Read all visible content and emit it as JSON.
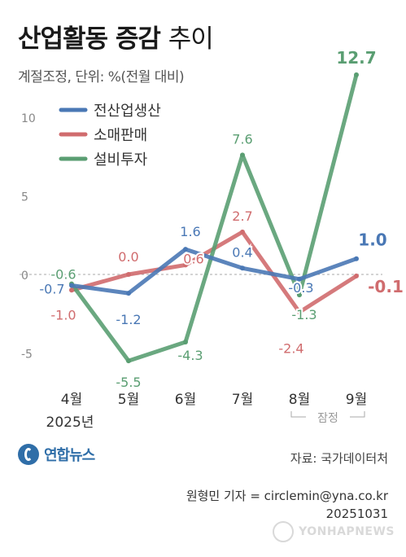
{
  "header": {
    "title_bold": "산업활동 증감",
    "title_light": "추이",
    "subtitle": "계절조정, 단위: %(전월 대비)"
  },
  "chart_data": {
    "type": "line",
    "categories": [
      "4월",
      "5월",
      "6월",
      "7월",
      "8월",
      "9월"
    ],
    "x_sublabel": "2025년",
    "provisional_label": "잠정",
    "y_ticks": [
      -5,
      0,
      5,
      10
    ],
    "ylim": [
      -7,
      14
    ],
    "legend_position": "top-left",
    "series": [
      {
        "name": "전산업생산",
        "color": "#4a78b5",
        "values": [
          -0.7,
          -1.2,
          1.6,
          0.4,
          -0.3,
          1.0
        ],
        "labels": [
          "-0.7",
          "-1.2",
          "1.6",
          "0.4",
          "-0.3",
          "1.0"
        ]
      },
      {
        "name": "소매판매",
        "color": "#d06c6e",
        "values": [
          -1.0,
          0.0,
          0.6,
          2.7,
          -2.4,
          -0.1
        ],
        "labels": [
          "-1.0",
          "0.0",
          "0.6",
          "2.7",
          "-2.4",
          "-0.1"
        ]
      },
      {
        "name": "설비투자",
        "color": "#5a9e72",
        "values": [
          -0.6,
          -5.5,
          -4.3,
          7.6,
          -1.3,
          12.7
        ],
        "labels": [
          "-0.6",
          "-5.5",
          "-4.3",
          "7.6",
          "-1.3",
          "12.7"
        ]
      }
    ]
  },
  "footer": {
    "logo_text": "연합뉴스",
    "source": "자료: 국가데이터처",
    "credit_line1": "원형민 기자 = circlemin@yna.co.kr",
    "credit_line2": "20251031",
    "watermark": "YONHAPNEWS"
  }
}
